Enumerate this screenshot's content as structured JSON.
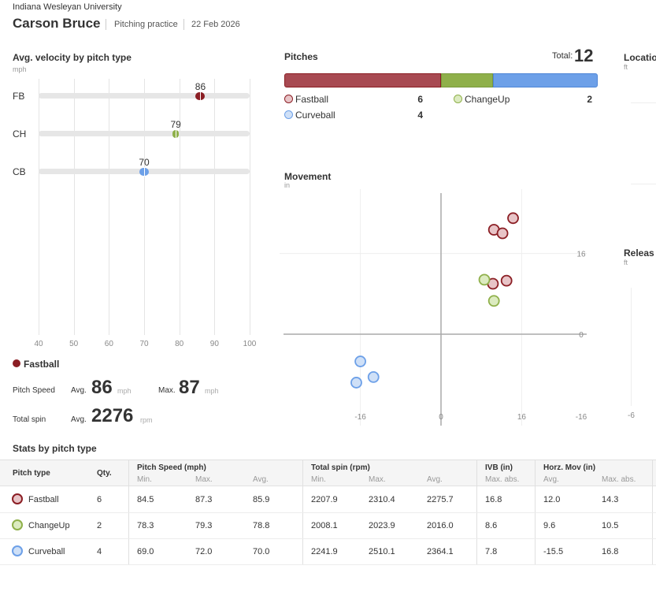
{
  "header": {
    "school": "Indiana Wesleyan University",
    "player": "Carson Bruce",
    "session": "Pitching practice",
    "date": "22 Feb 2026"
  },
  "colors": {
    "fastball": "#a84a52",
    "fastball_dark": "#8b1e24",
    "fastball_fill": "#e8c4c7",
    "changeup": "#8fb04a",
    "changeup_fill": "#dcebc0",
    "curveball": "#6da0e8",
    "curveball_fill": "#cfe0f7"
  },
  "velocity": {
    "title": "Avg. velocity by pitch type",
    "unit": "mph",
    "ticks": [
      "40",
      "50",
      "60",
      "70",
      "80",
      "90",
      "100"
    ],
    "rows": [
      {
        "label": "FB",
        "value": 86,
        "value_text": "86"
      },
      {
        "label": "CH",
        "value": 79,
        "value_text": "79"
      },
      {
        "label": "CB",
        "value": 70,
        "value_text": "70"
      }
    ],
    "selected": {
      "name": "Fastball",
      "speed_label": "Pitch Speed",
      "avg_label": "Avg.",
      "max_label": "Max.",
      "speed_avg": "86",
      "speed_max": "87",
      "speed_unit": "mph",
      "spin_label": "Total spin",
      "spin_avg": "2276",
      "spin_unit": "rpm"
    }
  },
  "pitches": {
    "title": "Pitches",
    "total_label": "Total:",
    "total": "12",
    "items": [
      {
        "name": "Fastball",
        "count": "6",
        "n": 6
      },
      {
        "name": "ChangeUp",
        "count": "2",
        "n": 2
      },
      {
        "name": "Curveball",
        "count": "4",
        "n": 4
      }
    ]
  },
  "movement": {
    "title": "Movement",
    "unit": "in",
    "y_ticks": [
      "16",
      "0",
      "-16"
    ],
    "x_ticks": [
      "-16",
      "0",
      "16"
    ],
    "points": [
      {
        "type": "fastball",
        "x": 14.3,
        "y": 23.0
      },
      {
        "type": "fastball",
        "x": 10.5,
        "y": 20.7
      },
      {
        "type": "fastball",
        "x": 12.2,
        "y": 20.0
      },
      {
        "type": "fastball",
        "x": 13.0,
        "y": 10.6
      },
      {
        "type": "fastball",
        "x": 10.3,
        "y": 10.0
      },
      {
        "type": "changeup",
        "x": 8.6,
        "y": 10.8
      },
      {
        "type": "changeup",
        "x": 10.5,
        "y": 6.6
      },
      {
        "type": "curveball",
        "x": -16.0,
        "y": -5.4
      },
      {
        "type": "curveball",
        "x": -13.4,
        "y": -8.5
      },
      {
        "type": "curveball",
        "x": -16.8,
        "y": -9.6
      }
    ]
  },
  "location": {
    "title": "Locatio",
    "unit": "ft"
  },
  "release": {
    "title": "Releas",
    "unit": "ft",
    "x_tick": "-6"
  },
  "stats": {
    "title": "Stats by pitch type",
    "headers": {
      "pitch_type": "Pitch type",
      "qty": "Qty.",
      "speed": "Pitch Speed (mph)",
      "spin": "Total spin (rpm)",
      "ivb": "IVB (in)",
      "horz": "Horz. Mov (in)",
      "min": "Min.",
      "max": "Max.",
      "avg": "Avg.",
      "max_abs": "Max. abs."
    },
    "rows": [
      {
        "type": "fastball",
        "name": "Fastball",
        "qty": "6",
        "s_min": "84.5",
        "s_max": "87.3",
        "s_avg": "85.9",
        "sp_min": "2207.9",
        "sp_max": "2310.4",
        "sp_avg": "2275.7",
        "ivb": "16.8",
        "h_avg": "12.0",
        "h_max": "14.3"
      },
      {
        "type": "changeup",
        "name": "ChangeUp",
        "qty": "2",
        "s_min": "78.3",
        "s_max": "79.3",
        "s_avg": "78.8",
        "sp_min": "2008.1",
        "sp_max": "2023.9",
        "sp_avg": "2016.0",
        "ivb": "8.6",
        "h_avg": "9.6",
        "h_max": "10.5"
      },
      {
        "type": "curveball",
        "name": "Curveball",
        "qty": "4",
        "s_min": "69.0",
        "s_max": "72.0",
        "s_avg": "70.0",
        "sp_min": "2241.9",
        "sp_max": "2510.1",
        "sp_avg": "2364.1",
        "ivb": "7.8",
        "h_avg": "-15.5",
        "h_max": "16.8"
      }
    ]
  }
}
